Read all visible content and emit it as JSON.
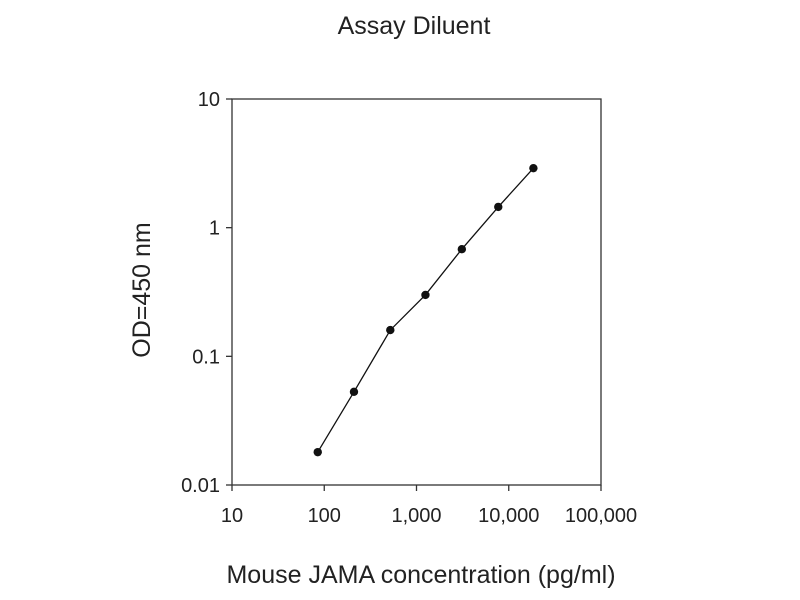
{
  "chart_data": {
    "type": "line",
    "title": "Assay Diluent",
    "xlabel": "Mouse JAMA concentration (pg/ml)",
    "ylabel": "OD=450 nm",
    "x_scale": "log",
    "y_scale": "log",
    "xlim": [
      10,
      100000
    ],
    "ylim": [
      0.01,
      10
    ],
    "x_ticks": [
      {
        "value": 10,
        "label": "10"
      },
      {
        "value": 100,
        "label": "100"
      },
      {
        "value": 1000,
        "label": "1,000"
      },
      {
        "value": 10000,
        "label": "10,000"
      },
      {
        "value": 100000,
        "label": "100,000"
      }
    ],
    "y_ticks": [
      {
        "value": 0.01,
        "label": "0.01"
      },
      {
        "value": 0.1,
        "label": "0.1"
      },
      {
        "value": 1,
        "label": "1"
      },
      {
        "value": 10,
        "label": "10"
      }
    ],
    "grid": false,
    "legend": "none",
    "colors": {
      "line": "#111111",
      "marker": "#111111",
      "axis": "#333333"
    },
    "series": [
      {
        "x": [
          85,
          210,
          520,
          1250,
          3100,
          7700,
          18500
        ],
        "y": [
          0.018,
          0.053,
          0.16,
          0.3,
          0.68,
          1.45,
          2.9
        ]
      }
    ]
  }
}
